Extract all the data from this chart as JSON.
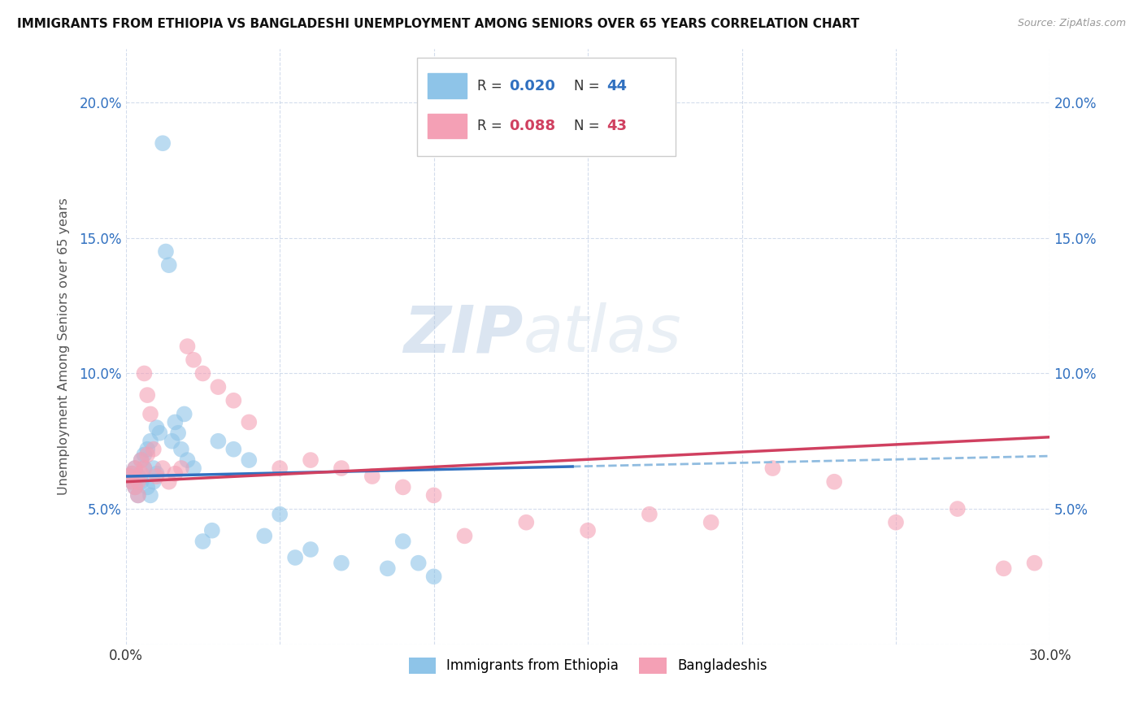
{
  "title": "IMMIGRANTS FROM ETHIOPIA VS BANGLADESHI UNEMPLOYMENT AMONG SENIORS OVER 65 YEARS CORRELATION CHART",
  "source": "Source: ZipAtlas.com",
  "ylabel": "Unemployment Among Seniors over 65 years",
  "xlim": [
    0.0,
    0.3
  ],
  "ylim": [
    0.0,
    0.22
  ],
  "x_ticks": [
    0.0,
    0.05,
    0.1,
    0.15,
    0.2,
    0.25,
    0.3
  ],
  "y_ticks": [
    0.0,
    0.05,
    0.1,
    0.15,
    0.2
  ],
  "legend_bottom_label1": "Immigrants from Ethiopia",
  "legend_bottom_label2": "Bangladeshis",
  "blue_color": "#8ec4e8",
  "pink_color": "#f4a0b5",
  "blue_line_color": "#3070c0",
  "pink_line_color": "#d04060",
  "dashed_line_color": "#90bce0",
  "watermark_zip": "ZIP",
  "watermark_atlas": "atlas",
  "eth_x": [
    0.001,
    0.002,
    0.002,
    0.003,
    0.003,
    0.004,
    0.004,
    0.005,
    0.005,
    0.006,
    0.006,
    0.007,
    0.007,
    0.008,
    0.008,
    0.009,
    0.009,
    0.01,
    0.01,
    0.011,
    0.012,
    0.013,
    0.014,
    0.015,
    0.016,
    0.017,
    0.018,
    0.019,
    0.02,
    0.022,
    0.025,
    0.028,
    0.03,
    0.035,
    0.04,
    0.045,
    0.05,
    0.055,
    0.06,
    0.07,
    0.085,
    0.09,
    0.095,
    0.1
  ],
  "eth_y": [
    0.062,
    0.06,
    0.063,
    0.058,
    0.065,
    0.062,
    0.055,
    0.068,
    0.06,
    0.07,
    0.065,
    0.072,
    0.058,
    0.075,
    0.055,
    0.065,
    0.06,
    0.08,
    0.063,
    0.078,
    0.185,
    0.145,
    0.14,
    0.075,
    0.082,
    0.078,
    0.072,
    0.085,
    0.068,
    0.065,
    0.038,
    0.042,
    0.075,
    0.072,
    0.068,
    0.04,
    0.048,
    0.032,
    0.035,
    0.03,
    0.028,
    0.038,
    0.03,
    0.025
  ],
  "ban_x": [
    0.001,
    0.002,
    0.002,
    0.003,
    0.003,
    0.004,
    0.004,
    0.005,
    0.005,
    0.006,
    0.006,
    0.007,
    0.007,
    0.008,
    0.009,
    0.01,
    0.012,
    0.014,
    0.016,
    0.018,
    0.02,
    0.022,
    0.025,
    0.03,
    0.035,
    0.04,
    0.05,
    0.06,
    0.07,
    0.08,
    0.09,
    0.1,
    0.11,
    0.13,
    0.15,
    0.17,
    0.19,
    0.21,
    0.23,
    0.25,
    0.27,
    0.285,
    0.295
  ],
  "ban_y": [
    0.062,
    0.06,
    0.063,
    0.058,
    0.065,
    0.06,
    0.055,
    0.068,
    0.063,
    0.065,
    0.1,
    0.07,
    0.092,
    0.085,
    0.072,
    0.062,
    0.065,
    0.06,
    0.063,
    0.065,
    0.11,
    0.105,
    0.1,
    0.095,
    0.09,
    0.082,
    0.065,
    0.068,
    0.065,
    0.062,
    0.058,
    0.055,
    0.04,
    0.045,
    0.042,
    0.048,
    0.045,
    0.065,
    0.06,
    0.045,
    0.05,
    0.028,
    0.03
  ]
}
